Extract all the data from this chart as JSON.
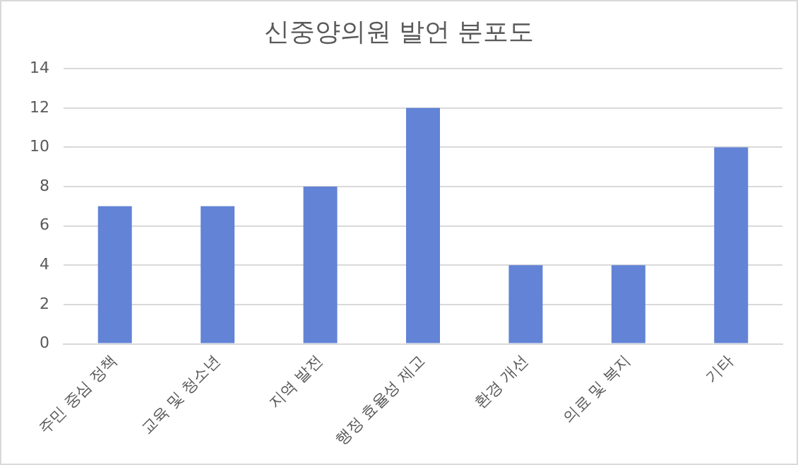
{
  "chart_data": {
    "type": "bar",
    "title": "신중양의원 발언 분포도",
    "categories": [
      "주민 중심 정책",
      "교육 및 청소년",
      "지역 발전",
      "행정 효율성 제고",
      "환경 개선",
      "의료 및 복지",
      "기타"
    ],
    "values": [
      7,
      7,
      8,
      12,
      4,
      4,
      10
    ],
    "color": "#6283d6",
    "ylim": [
      0,
      14
    ],
    "yticks": [
      0,
      2,
      4,
      6,
      8,
      10,
      12,
      14
    ],
    "grid": "y"
  }
}
